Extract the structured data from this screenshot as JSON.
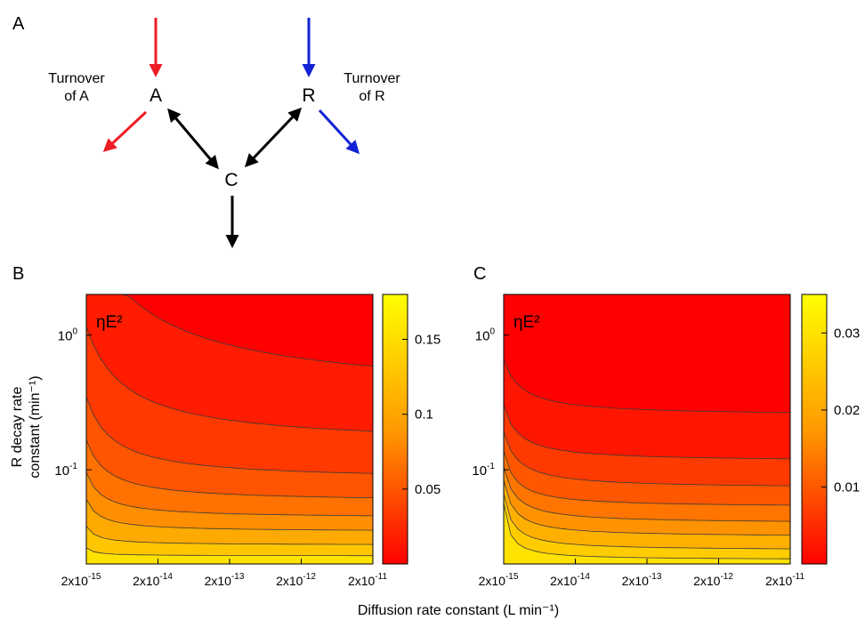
{
  "panel_labels": {
    "a": "A",
    "b": "B",
    "c": "C"
  },
  "diagram": {
    "nodes": {
      "a": "A",
      "r": "R",
      "c": "C"
    },
    "turnover_a": [
      "Turnover",
      "of A"
    ],
    "turnover_r": [
      "Turnover",
      "of R"
    ],
    "colors": {
      "a_arrows": "#ee1c25",
      "r_arrows": "#1222d4",
      "interaction": "#000000"
    }
  },
  "shared_axes": {
    "xlabel": "Diffusion rate constant (L min⁻¹)",
    "ylabel_line1": "R decay rate",
    "ylabel_line2": "constant (min⁻¹)",
    "x_ticks": [
      {
        "base": "2x10",
        "exp": "-15"
      },
      {
        "base": "2x10",
        "exp": "-14"
      },
      {
        "base": "2x10",
        "exp": "-13"
      },
      {
        "base": "2x10",
        "exp": "-12"
      },
      {
        "base": "2x10",
        "exp": "-11"
      }
    ],
    "y_ticks": [
      {
        "base": "10",
        "exp": "0"
      },
      {
        "base": "10",
        "exp": "-1"
      }
    ]
  },
  "chart_data": [
    {
      "type": "heatmap",
      "panel": "B",
      "annotation": "ηE²",
      "x_scale": "log",
      "y_scale": "log",
      "xlim": [
        2e-15,
        2e-11
      ],
      "ylim": [
        0.02,
        2
      ],
      "contour_levels": [
        0.02,
        0.04,
        0.06,
        0.08,
        0.1,
        0.12,
        0.14,
        0.16
      ],
      "colorbar": {
        "ticks": [
          "0.15",
          "0.1",
          "0.05"
        ],
        "tick_values": [
          0.15,
          0.1,
          0.05
        ],
        "range": [
          0,
          0.18
        ],
        "colors": [
          "#ff0000",
          "#ffff00"
        ]
      }
    },
    {
      "type": "heatmap",
      "panel": "C",
      "annotation": "ηE²",
      "x_scale": "log",
      "y_scale": "log",
      "xlim": [
        2e-15,
        2e-11
      ],
      "ylim": [
        0.02,
        2
      ],
      "contour_levels": [
        0.003,
        0.008,
        0.012,
        0.016,
        0.02,
        0.024,
        0.028,
        0.031
      ],
      "colorbar": {
        "ticks": [
          "0.03",
          "0.02",
          "0.01"
        ],
        "tick_values": [
          0.03,
          0.02,
          0.01
        ],
        "range": [
          0,
          0.035
        ],
        "colors": [
          "#ff0000",
          "#ffff00"
        ]
      }
    }
  ]
}
